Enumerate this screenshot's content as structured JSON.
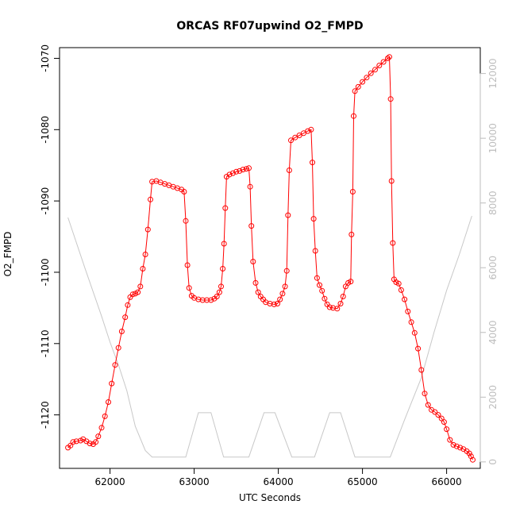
{
  "chart_data": {
    "type": "line",
    "title": "ORCAS RF07upwind O2_FMPD",
    "xlabel": "UTC Seconds",
    "ylabel": "O2_FMPD",
    "xlim": [
      61400,
      66400
    ],
    "ylim": [
      -1127.5,
      -1068.5
    ],
    "y2lim": [
      -200,
      12800
    ],
    "grid": false,
    "legend": "none",
    "x_ticks": [
      62000,
      63000,
      64000,
      65000,
      66000
    ],
    "x_tick_labels": [
      "62000",
      "63000",
      "64000",
      "65000",
      "66000"
    ],
    "y_ticks": [
      -1120,
      -1110,
      -1100,
      -1090,
      -1080,
      -1070
    ],
    "y_tick_labels": [
      "-1120",
      "-1110",
      "-1100",
      "-1090",
      "-1080",
      "-1070"
    ],
    "y2_ticks": [
      0,
      2000,
      4000,
      6000,
      8000,
      10000,
      12000
    ],
    "y2_tick_labels": [
      "0",
      "2000",
      "4000",
      "6000",
      "8000",
      "10000",
      "12000"
    ],
    "series": [
      {
        "color": "#ff0000",
        "marker": "open-circle",
        "axis": "left",
        "points": [
          [
            61500,
            -1124.6
          ],
          [
            61530,
            -1124.3
          ],
          [
            61560,
            -1123.8
          ],
          [
            61600,
            -1123.7
          ],
          [
            61650,
            -1123.6
          ],
          [
            61680,
            -1123.4
          ],
          [
            61720,
            -1123.7
          ],
          [
            61760,
            -1124.0
          ],
          [
            61800,
            -1124.1
          ],
          [
            61830,
            -1123.8
          ],
          [
            61860,
            -1123.0
          ],
          [
            61900,
            -1121.8
          ],
          [
            61940,
            -1120.2
          ],
          [
            61980,
            -1118.2
          ],
          [
            62020,
            -1115.6
          ],
          [
            62060,
            -1113.0
          ],
          [
            62100,
            -1110.6
          ],
          [
            62140,
            -1108.3
          ],
          [
            62180,
            -1106.3
          ],
          [
            62210,
            -1104.6
          ],
          [
            62240,
            -1103.5
          ],
          [
            62270,
            -1103.1
          ],
          [
            62300,
            -1103.0
          ],
          [
            62330,
            -1102.8
          ],
          [
            62360,
            -1102.0
          ],
          [
            62390,
            -1099.5
          ],
          [
            62420,
            -1097.5
          ],
          [
            62450,
            -1094.0
          ],
          [
            62480,
            -1089.8
          ],
          [
            62500,
            -1087.3
          ],
          [
            62550,
            -1087.2
          ],
          [
            62600,
            -1087.4
          ],
          [
            62650,
            -1087.6
          ],
          [
            62700,
            -1087.8
          ],
          [
            62750,
            -1088.0
          ],
          [
            62800,
            -1088.2
          ],
          [
            62850,
            -1088.4
          ],
          [
            62880,
            -1088.7
          ],
          [
            62900,
            -1092.8
          ],
          [
            62920,
            -1099.0
          ],
          [
            62940,
            -1102.2
          ],
          [
            62970,
            -1103.3
          ],
          [
            63000,
            -1103.6
          ],
          [
            63050,
            -1103.8
          ],
          [
            63100,
            -1103.9
          ],
          [
            63150,
            -1103.9
          ],
          [
            63200,
            -1103.9
          ],
          [
            63240,
            -1103.7
          ],
          [
            63270,
            -1103.4
          ],
          [
            63300,
            -1102.8
          ],
          [
            63320,
            -1102.0
          ],
          [
            63340,
            -1099.5
          ],
          [
            63355,
            -1096.0
          ],
          [
            63370,
            -1091.0
          ],
          [
            63385,
            -1086.6
          ],
          [
            63420,
            -1086.3
          ],
          [
            63460,
            -1086.1
          ],
          [
            63500,
            -1085.9
          ],
          [
            63540,
            -1085.8
          ],
          [
            63580,
            -1085.6
          ],
          [
            63620,
            -1085.5
          ],
          [
            63650,
            -1085.4
          ],
          [
            63665,
            -1088.0
          ],
          [
            63680,
            -1093.5
          ],
          [
            63700,
            -1098.5
          ],
          [
            63730,
            -1101.5
          ],
          [
            63760,
            -1102.8
          ],
          [
            63790,
            -1103.4
          ],
          [
            63820,
            -1103.8
          ],
          [
            63850,
            -1104.2
          ],
          [
            63900,
            -1104.4
          ],
          [
            63950,
            -1104.5
          ],
          [
            63990,
            -1104.4
          ],
          [
            64020,
            -1103.8
          ],
          [
            64050,
            -1103.0
          ],
          [
            64080,
            -1102.0
          ],
          [
            64100,
            -1099.8
          ],
          [
            64115,
            -1092.0
          ],
          [
            64130,
            -1085.7
          ],
          [
            64150,
            -1081.5
          ],
          [
            64200,
            -1081.1
          ],
          [
            64250,
            -1080.8
          ],
          [
            64300,
            -1080.5
          ],
          [
            64350,
            -1080.2
          ],
          [
            64390,
            -1080.0
          ],
          [
            64405,
            -1084.6
          ],
          [
            64420,
            -1092.5
          ],
          [
            64440,
            -1097.0
          ],
          [
            64460,
            -1100.8
          ],
          [
            64490,
            -1101.8
          ],
          [
            64520,
            -1102.6
          ],
          [
            64550,
            -1103.7
          ],
          [
            64580,
            -1104.5
          ],
          [
            64610,
            -1104.9
          ],
          [
            64650,
            -1105.0
          ],
          [
            64700,
            -1105.1
          ],
          [
            64740,
            -1104.4
          ],
          [
            64770,
            -1103.4
          ],
          [
            64800,
            -1102.0
          ],
          [
            64830,
            -1101.5
          ],
          [
            64860,
            -1101.3
          ],
          [
            64870,
            -1094.7
          ],
          [
            64885,
            -1088.7
          ],
          [
            64895,
            -1078.1
          ],
          [
            64910,
            -1074.6
          ],
          [
            64950,
            -1074.0
          ],
          [
            65000,
            -1073.3
          ],
          [
            65050,
            -1072.7
          ],
          [
            65100,
            -1072.1
          ],
          [
            65150,
            -1071.6
          ],
          [
            65200,
            -1071.0
          ],
          [
            65250,
            -1070.5
          ],
          [
            65300,
            -1070.0
          ],
          [
            65320,
            -1069.8
          ],
          [
            65335,
            -1075.7
          ],
          [
            65345,
            -1087.2
          ],
          [
            65360,
            -1095.9
          ],
          [
            65375,
            -1101.0
          ],
          [
            65400,
            -1101.4
          ],
          [
            65430,
            -1101.6
          ],
          [
            65460,
            -1102.5
          ],
          [
            65500,
            -1103.8
          ],
          [
            65540,
            -1105.5
          ],
          [
            65580,
            -1107.0
          ],
          [
            65620,
            -1108.5
          ],
          [
            65660,
            -1110.7
          ],
          [
            65700,
            -1113.7
          ],
          [
            65740,
            -1117.0
          ],
          [
            65780,
            -1118.6
          ],
          [
            65820,
            -1119.3
          ],
          [
            65860,
            -1119.6
          ],
          [
            65900,
            -1120.0
          ],
          [
            65940,
            -1120.5
          ],
          [
            65970,
            -1121.0
          ],
          [
            66000,
            -1122.0
          ],
          [
            66040,
            -1123.5
          ],
          [
            66080,
            -1124.2
          ],
          [
            66120,
            -1124.4
          ],
          [
            66160,
            -1124.6
          ],
          [
            66200,
            -1124.8
          ],
          [
            66240,
            -1125.1
          ],
          [
            66270,
            -1125.4
          ],
          [
            66290,
            -1125.8
          ],
          [
            66310,
            -1126.3
          ]
        ]
      },
      {
        "color": "#c8c8c8",
        "marker": "none",
        "axis": "right",
        "points": [
          [
            61500,
            7550
          ],
          [
            61700,
            6000
          ],
          [
            61900,
            4500
          ],
          [
            62000,
            3700
          ],
          [
            62100,
            3000
          ],
          [
            62200,
            2200
          ],
          [
            62300,
            1100
          ],
          [
            62420,
            350
          ],
          [
            62500,
            150
          ],
          [
            62600,
            150
          ],
          [
            62900,
            150
          ],
          [
            63050,
            1520
          ],
          [
            63200,
            1520
          ],
          [
            63350,
            150
          ],
          [
            63650,
            150
          ],
          [
            63830,
            1520
          ],
          [
            63960,
            1520
          ],
          [
            64160,
            150
          ],
          [
            64430,
            150
          ],
          [
            64610,
            1520
          ],
          [
            64740,
            1520
          ],
          [
            64910,
            150
          ],
          [
            65330,
            150
          ],
          [
            65500,
            1300
          ],
          [
            65700,
            2600
          ],
          [
            65850,
            4000
          ],
          [
            66000,
            5300
          ],
          [
            66150,
            6400
          ],
          [
            66300,
            7600
          ]
        ]
      }
    ]
  }
}
